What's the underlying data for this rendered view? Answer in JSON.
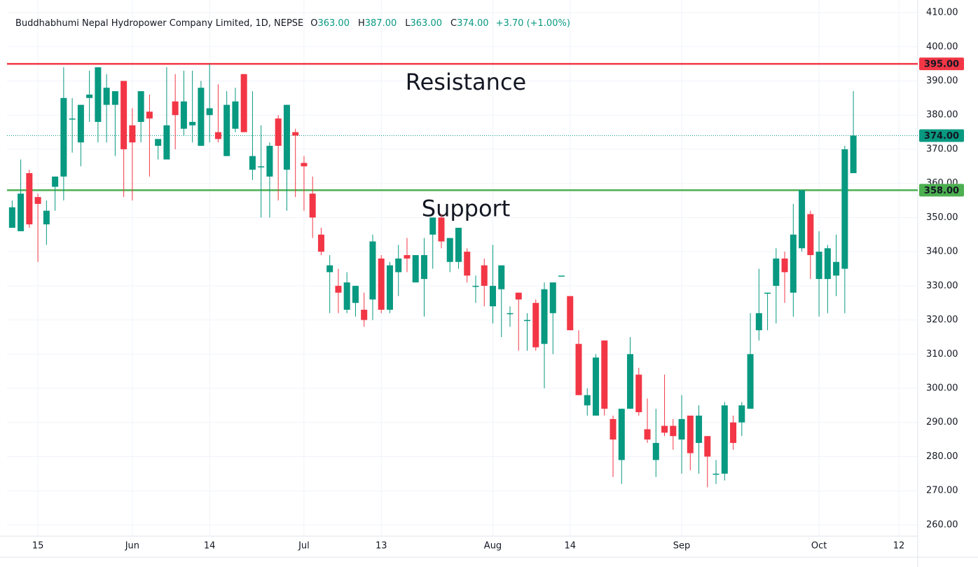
{
  "chart_data": {
    "type": "candlestick",
    "title": "Buddhabhumi Nepal Hydropower Company Limited, 1D, NEPSE",
    "legend": [
      {
        "key": "O",
        "text": "363.00"
      },
      {
        "key": "H",
        "text": "387.00"
      },
      {
        "key": "L",
        "text": "363.00"
      },
      {
        "key": "C",
        "text": "374.00"
      }
    ],
    "change": "+3.70 (+1.00%)",
    "up_color": "#089981",
    "down_color": "#f23645",
    "open": [
      347,
      346,
      363,
      356,
      348,
      359,
      362,
      379,
      372,
      385,
      378,
      383,
      383,
      390,
      377,
      378,
      381,
      371,
      367,
      384,
      376,
      377,
      371,
      380,
      375,
      368,
      376,
      392,
      364,
      365,
      362,
      379,
      364,
      375,
      366,
      357,
      345,
      334,
      330,
      323,
      325,
      323,
      326,
      338,
      323,
      334,
      339,
      331,
      332,
      345,
      350,
      337,
      337,
      340,
      330,
      336,
      324,
      329,
      322,
      328,
      320,
      325,
      313,
      322,
      333,
      327,
      313,
      295,
      292,
      314,
      291,
      279,
      294,
      304,
      288,
      279,
      289,
      289,
      285,
      292,
      284,
      286,
      275,
      275,
      290,
      290,
      294,
      317,
      328,
      330,
      338,
      328,
      341,
      351,
      332,
      332,
      333,
      335,
      363
    ],
    "high": [
      355,
      367,
      364,
      357,
      355,
      362,
      394,
      385,
      383,
      393,
      394,
      392,
      387,
      390,
      382,
      387,
      386,
      373,
      394,
      392,
      393,
      393,
      390,
      395,
      389,
      387,
      388,
      392,
      387,
      377,
      372,
      380,
      383,
      376,
      368,
      362,
      347,
      339,
      335,
      334,
      330,
      328,
      345,
      339,
      337,
      342,
      344,
      339,
      344,
      350,
      351,
      344,
      347,
      341,
      333,
      338,
      342,
      336,
      324,
      328,
      322,
      326,
      331,
      331,
      333,
      327,
      317,
      300,
      310,
      314,
      292,
      294,
      315,
      306,
      297,
      294,
      304,
      291,
      298,
      292,
      295,
      286,
      279,
      296,
      292,
      296,
      322,
      335,
      328,
      341,
      340,
      354,
      358,
      352,
      346,
      342,
      345,
      371,
      387
    ],
    "low": [
      347,
      346,
      347,
      337,
      342,
      352,
      355,
      369,
      365,
      378,
      372,
      372,
      368,
      356,
      355,
      372,
      362,
      367,
      367,
      370,
      374,
      372,
      371,
      372,
      372,
      368,
      375,
      375,
      361,
      350,
      350,
      355,
      352,
      356,
      352,
      344,
      339,
      322,
      322,
      322,
      321,
      318,
      320,
      322,
      322,
      327,
      334,
      331,
      321,
      335,
      341,
      334,
      335,
      331,
      325,
      324,
      319,
      315,
      318,
      311,
      311,
      311,
      300,
      310,
      333,
      317,
      298,
      292,
      292,
      292,
      274,
      272,
      294,
      292,
      284,
      274,
      286,
      282,
      275,
      276,
      275,
      271,
      272,
      273,
      282,
      286,
      294,
      314,
      317,
      319,
      325,
      321,
      340,
      332,
      321,
      322,
      327,
      322,
      363
    ],
    "close": [
      353,
      357,
      348,
      354,
      352,
      362,
      385,
      379,
      383,
      386,
      394,
      388,
      387,
      370,
      372,
      387,
      379,
      373,
      377,
      380,
      384,
      378,
      388,
      382,
      373,
      383,
      384,
      375,
      368,
      365,
      371,
      371,
      383,
      374,
      365,
      350,
      340,
      336,
      328,
      331,
      330,
      320,
      343,
      323,
      336,
      338,
      338,
      339,
      339,
      350,
      343,
      344,
      347,
      333,
      330,
      330,
      330,
      336,
      322,
      326,
      320,
      312,
      329,
      331,
      333,
      317,
      298,
      298,
      309,
      294,
      285,
      294,
      310,
      293,
      285,
      284,
      287,
      286,
      291,
      281,
      292,
      280,
      275,
      295,
      284,
      295,
      310,
      322,
      328,
      338,
      334,
      345,
      358,
      339,
      340,
      341,
      337,
      370,
      374
    ],
    "xlim": [
      -0.6,
      105.5
    ],
    "xticks": [
      {
        "value": 3,
        "label": "15"
      },
      {
        "value": 14,
        "label": "Jun"
      },
      {
        "value": 23,
        "label": "14"
      },
      {
        "value": 34,
        "label": "Jul"
      },
      {
        "value": 43,
        "label": "13"
      },
      {
        "value": 56,
        "label": "Aug"
      },
      {
        "value": 65,
        "label": "14"
      },
      {
        "value": 78,
        "label": "Sep"
      },
      {
        "value": 94,
        "label": "Oct"
      },
      {
        "value": 103.3,
        "label": "12"
      }
    ],
    "ylim": [
      256.7,
      413.7
    ],
    "yticks": [
      {
        "value": 260,
        "label": "260.00"
      },
      {
        "value": 270,
        "label": "270.00"
      },
      {
        "value": 280,
        "label": "280.00"
      },
      {
        "value": 290,
        "label": "290.00"
      },
      {
        "value": 300,
        "label": "300.00"
      },
      {
        "value": 310,
        "label": "310.00"
      },
      {
        "value": 320,
        "label": "320.00"
      },
      {
        "value": 330,
        "label": "330.00"
      },
      {
        "value": 340,
        "label": "340.00"
      },
      {
        "value": 350,
        "label": "350.00"
      },
      {
        "value": 360,
        "label": "360.00"
      },
      {
        "value": 370,
        "label": "370.00"
      },
      {
        "value": 380,
        "label": "380.00"
      },
      {
        "value": 390,
        "label": "390.00"
      },
      {
        "value": 400,
        "label": "400.00"
      },
      {
        "value": 410,
        "label": "410.00"
      }
    ],
    "grid": true,
    "levels": [
      {
        "name": "Resistance",
        "value": 395,
        "label": "395.00",
        "color": "#f23645",
        "style": "solid"
      },
      {
        "name": "Support",
        "value": 358,
        "label": "358.00",
        "color": "#4caf50",
        "style": "solid"
      },
      {
        "value": 374,
        "label": "374.00",
        "color": "#089981",
        "style": "dotted"
      }
    ]
  }
}
